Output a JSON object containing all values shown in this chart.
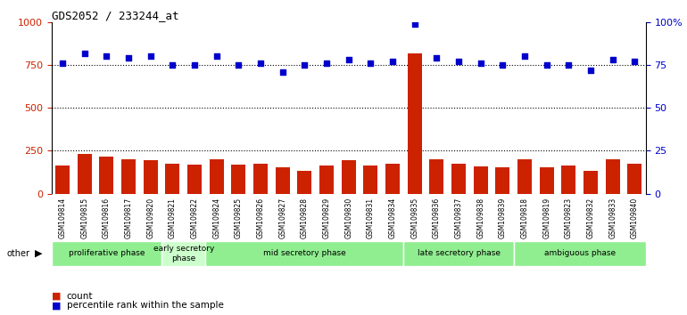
{
  "title": "GDS2052 / 233244_at",
  "samples": [
    "GSM109814",
    "GSM109815",
    "GSM109816",
    "GSM109817",
    "GSM109820",
    "GSM109821",
    "GSM109822",
    "GSM109824",
    "GSM109825",
    "GSM109826",
    "GSM109827",
    "GSM109828",
    "GSM109829",
    "GSM109830",
    "GSM109831",
    "GSM109834",
    "GSM109835",
    "GSM109836",
    "GSM109837",
    "GSM109838",
    "GSM109839",
    "GSM109818",
    "GSM109819",
    "GSM109823",
    "GSM109832",
    "GSM109833",
    "GSM109840"
  ],
  "counts": [
    165,
    230,
    215,
    200,
    195,
    175,
    170,
    200,
    170,
    175,
    155,
    135,
    165,
    195,
    165,
    175,
    820,
    200,
    175,
    160,
    155,
    200,
    155,
    165,
    135,
    200,
    175
  ],
  "percentiles": [
    76,
    82,
    80,
    79,
    80,
    75,
    75,
    80,
    75,
    76,
    71,
    75,
    76,
    78,
    76,
    77,
    99,
    79,
    77,
    76,
    75,
    80,
    75,
    75,
    72,
    78,
    77
  ],
  "phases": [
    {
      "label": "proliferative phase",
      "start": 0,
      "end": 5,
      "color": "#90EE90"
    },
    {
      "label": "early secretory\nphase",
      "start": 5,
      "end": 7,
      "color": "#ccffcc"
    },
    {
      "label": "mid secretory phase",
      "start": 7,
      "end": 16,
      "color": "#90EE90"
    },
    {
      "label": "late secretory phase",
      "start": 16,
      "end": 21,
      "color": "#90EE90"
    },
    {
      "label": "ambiguous phase",
      "start": 21,
      "end": 27,
      "color": "#90EE90"
    }
  ],
  "bar_color": "#cc2200",
  "dot_color": "#0000cc",
  "ylim_left": [
    0,
    1000
  ],
  "ylim_right": [
    0,
    100
  ],
  "yticks_left": [
    0,
    250,
    500,
    750,
    1000
  ],
  "yticks_right": [
    0,
    25,
    50,
    75,
    100
  ],
  "yticklabels_right": [
    "0",
    "25",
    "50",
    "75",
    "100%"
  ],
  "hlines": [
    250,
    500,
    750
  ],
  "background_color": "#ffffff",
  "other_label": "other"
}
